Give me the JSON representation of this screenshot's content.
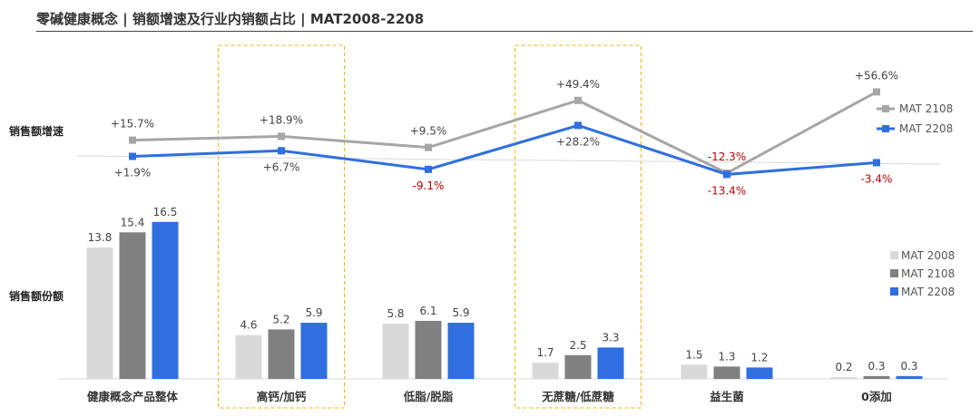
{
  "title": "零碱健康概念 | 销额增速及行业内销额占比 | MAT2008-2208",
  "chart_data": [
    {
      "type": "line",
      "row_label": "销售额增速",
      "categories": [
        "健康概念产品整体",
        "高钙/加钙",
        "低脂/脱脂",
        "无蔗糖/低蔗糖",
        "益生菌",
        "0添加"
      ],
      "series": [
        {
          "name": "MAT 2108",
          "color": "#a6a6a6",
          "values": [
            15.7,
            18.9,
            9.5,
            49.4,
            -12.3,
            56.6
          ],
          "labels": [
            "+15.7%",
            "+18.9%",
            "+9.5%",
            "+49.4%",
            "-12.3%",
            "+56.6%"
          ]
        },
        {
          "name": "MAT 2208",
          "color": "#2f6fdf",
          "values": [
            1.9,
            6.7,
            -9.1,
            28.2,
            -13.4,
            -3.4
          ],
          "labels": [
            "+1.9%",
            "+6.7%",
            "-9.1%",
            "+28.2%",
            "-13.4%",
            "-3.4%"
          ]
        }
      ],
      "negative_label_color": "#c00000"
    },
    {
      "type": "bar",
      "row_label": "销售额份额",
      "categories": [
        "健康概念产品整体",
        "高钙/加钙",
        "低脂/脱脂",
        "无蔗糖/低蔗糖",
        "益生菌",
        "0添加"
      ],
      "series": [
        {
          "name": "MAT 2008",
          "color": "#d9d9d9",
          "values": [
            13.8,
            4.6,
            5.8,
            1.7,
            1.5,
            0.2
          ]
        },
        {
          "name": "MAT 2108",
          "color": "#808080",
          "values": [
            15.4,
            5.2,
            6.1,
            2.5,
            1.3,
            0.3
          ]
        },
        {
          "name": "MAT 2208",
          "color": "#2f6fdf",
          "values": [
            16.5,
            5.9,
            5.9,
            3.3,
            1.2,
            0.3
          ]
        }
      ],
      "highlighted_categories": [
        "高钙/加钙",
        "无蔗糖/低蔗糖"
      ],
      "highlight_color": "#f0b400"
    }
  ]
}
